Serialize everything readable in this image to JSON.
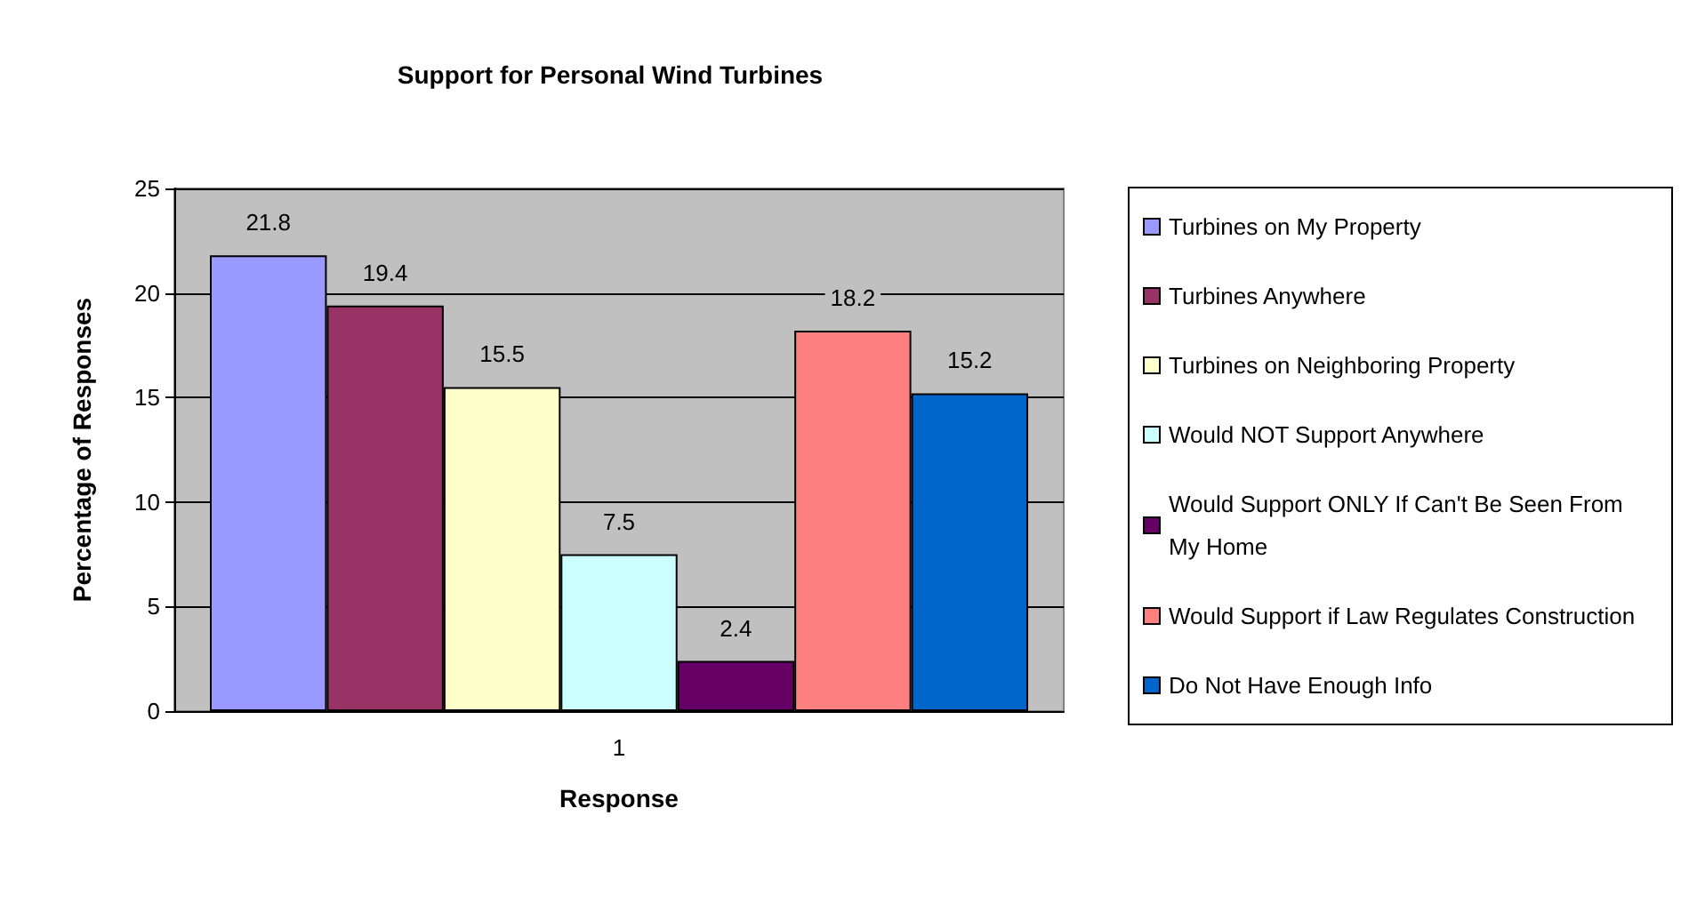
{
  "chart_data": {
    "type": "bar",
    "title": "Support for Personal Wind Turbines",
    "xlabel": "Response",
    "ylabel": "Percentage of Responses",
    "categories": [
      "1"
    ],
    "series": [
      {
        "name": "Turbines on My Property",
        "color": "#9999ff",
        "values": [
          21.8
        ]
      },
      {
        "name": "Turbines Anywhere",
        "color": "#993366",
        "values": [
          19.4
        ]
      },
      {
        "name": "Turbines on Neighboring Property",
        "color": "#ffffcc",
        "values": [
          15.5
        ]
      },
      {
        "name": "Would NOT Support Anywhere",
        "color": "#ccffff",
        "values": [
          7.5
        ]
      },
      {
        "name": "Would Support ONLY If Can't Be Seen From My Home",
        "color": "#660066",
        "values": [
          2.4
        ]
      },
      {
        "name": "Would Support if Law Regulates Construction",
        "color": "#ff8080",
        "values": [
          18.2
        ]
      },
      {
        "name": "Do Not Have Enough Info",
        "color": "#0066cc",
        "values": [
          15.2
        ]
      }
    ],
    "ylim": [
      0,
      25
    ],
    "yticks": [
      0,
      5,
      10,
      15,
      20,
      25
    ],
    "grid": "y",
    "legend": "right",
    "data_labels": true
  }
}
